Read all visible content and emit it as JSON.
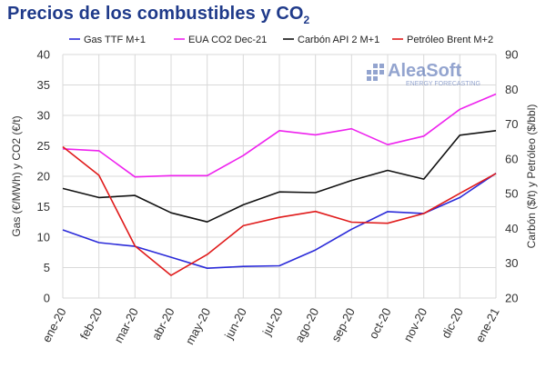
{
  "title": {
    "main": "Precios de los combustibles y CO",
    "sub": "2"
  },
  "watermark": {
    "brand": "AleaSoft",
    "tagline": "ENERGY FORECASTING"
  },
  "chart_data": {
    "type": "line",
    "categories": [
      "ene-20",
      "feb-20",
      "mar-20",
      "abr-20",
      "may-20",
      "jun-20",
      "jul-20",
      "ago-20",
      "sep-20",
      "oct-20",
      "nov-20",
      "dic-20",
      "ene-21"
    ],
    "ylabel_left": "Gas (€/MWh) y CO2 (€/t)",
    "ylabel_right": "Carbón ($/t) y Petróleo ($/bbl)",
    "ylim_left": [
      0,
      40
    ],
    "ylim_right": [
      20,
      90
    ],
    "yticks_left": [
      "0",
      "5",
      "10",
      "15",
      "20",
      "25",
      "30",
      "35",
      "40"
    ],
    "yticks_right": [
      "20",
      "30",
      "40",
      "50",
      "60",
      "70",
      "80",
      "90"
    ],
    "grid": true,
    "legend_position": "top",
    "series": [
      {
        "name": "Gas TTF M+1",
        "axis": "left",
        "color": "#2b2bd9",
        "values": [
          11.2,
          9.1,
          8.5,
          6.7,
          4.9,
          5.2,
          5.3,
          7.9,
          11.3,
          14.2,
          13.9,
          16.5,
          20.5
        ]
      },
      {
        "name": "EUA CO2 Dec-21",
        "axis": "left",
        "color": "#ee22ee",
        "values": [
          24.5,
          24.2,
          19.9,
          20.1,
          20.1,
          23.4,
          27.5,
          26.8,
          27.8,
          25.2,
          26.6,
          31.0,
          33.5
        ]
      },
      {
        "name": "Carbón API 2 M+1",
        "axis": "right",
        "color": "#111111",
        "values": [
          51.5,
          48.9,
          49.5,
          44.5,
          41.9,
          46.8,
          50.5,
          50.3,
          53.8,
          56.7,
          54.2,
          66.8,
          68.1
        ]
      },
      {
        "name": "Petróleo Brent M+2",
        "axis": "right",
        "color": "#e01b1b",
        "values": [
          63.5,
          55.3,
          35.0,
          26.5,
          32.5,
          40.8,
          43.2,
          44.9,
          41.8,
          41.5,
          44.3,
          50.1,
          55.8
        ]
      }
    ]
  }
}
